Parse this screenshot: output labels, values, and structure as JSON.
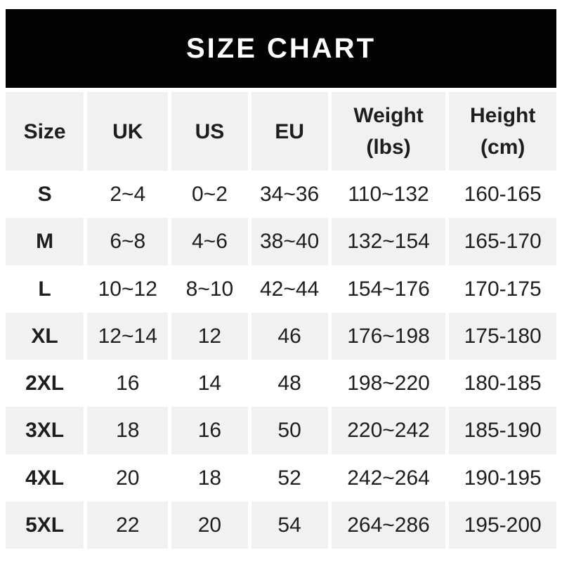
{
  "title": "SIZE CHART",
  "colors": {
    "banner_bg": "#020202",
    "banner_text": "#ffffff",
    "row_alt_bg": "#f1f1f2",
    "row_bg": "#ffffff",
    "text": "#1d1e20"
  },
  "chart_data": {
    "type": "table",
    "title": "SIZE CHART",
    "columns": [
      "Size",
      "UK",
      "US",
      "EU",
      "Weight (lbs)",
      "Height (cm)"
    ],
    "rows": [
      [
        "S",
        "2~4",
        "0~2",
        "34~36",
        "110~132",
        "160-165"
      ],
      [
        "M",
        "6~8",
        "4~6",
        "38~40",
        "132~154",
        "165-170"
      ],
      [
        "L",
        "10~12",
        "8~10",
        "42~44",
        "154~176",
        "170-175"
      ],
      [
        "XL",
        "12~14",
        "12",
        "46",
        "176~198",
        "175-180"
      ],
      [
        "2XL",
        "16",
        "14",
        "48",
        "198~220",
        "180-185"
      ],
      [
        "3XL",
        "18",
        "16",
        "50",
        "220~242",
        "185-190"
      ],
      [
        "4XL",
        "20",
        "18",
        "52",
        "242~264",
        "190-195"
      ],
      [
        "5XL",
        "22",
        "20",
        "54",
        "264~286",
        "195-200"
      ]
    ]
  }
}
